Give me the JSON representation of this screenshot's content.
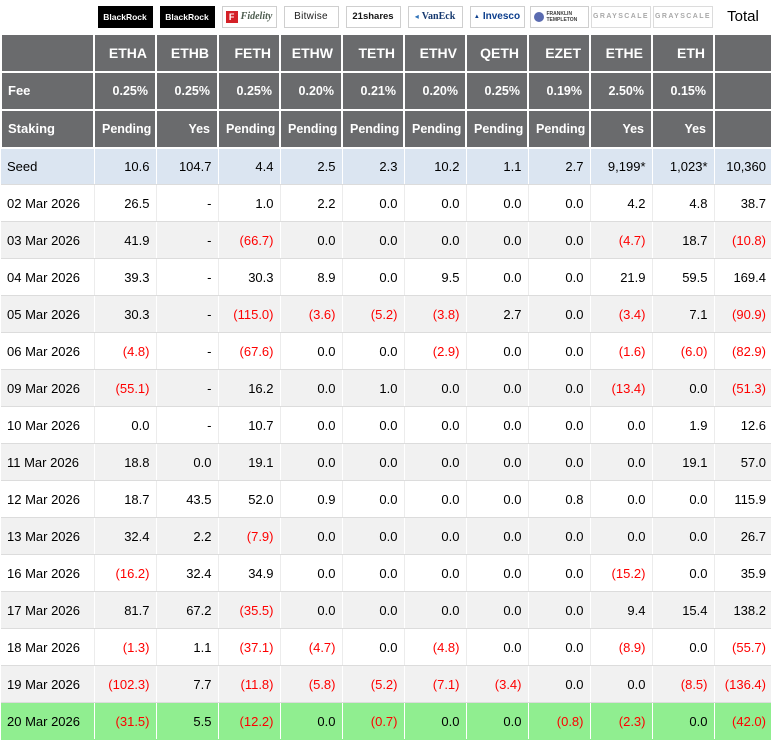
{
  "chart_data": {
    "type": "table",
    "header": {
      "total_label": "Total",
      "fee_label": "Fee",
      "staking_label": "Staking",
      "providers": [
        {
          "name": "BlackRock",
          "style": "blackrock"
        },
        {
          "name": "BlackRock",
          "style": "blackrock"
        },
        {
          "name": "Fidelity",
          "style": "fidelity",
          "mark": "F"
        },
        {
          "name": "Bitwise",
          "style": "bitwise"
        },
        {
          "name": "21shares",
          "style": "shares21"
        },
        {
          "name": "VanEck",
          "style": "vaneck"
        },
        {
          "name": "Invesco",
          "style": "invesco"
        },
        {
          "name": "FRANKLIN TEMPLETON",
          "style": "franklin"
        },
        {
          "name": "GRAYSCALE",
          "style": "grayscale"
        },
        {
          "name": "GRAYSCALE",
          "style": "grayscale"
        }
      ],
      "tickers": [
        "ETHA",
        "ETHB",
        "FETH",
        "ETHW",
        "TETH",
        "ETHV",
        "QETH",
        "EZET",
        "ETHE",
        "ETH"
      ],
      "fees": [
        "0.25%",
        "0.25%",
        "0.25%",
        "0.20%",
        "0.21%",
        "0.20%",
        "0.25%",
        "0.19%",
        "2.50%",
        "0.15%"
      ],
      "staking": [
        "Pending",
        "Yes",
        "Pending",
        "Pending",
        "Pending",
        "Pending",
        "Pending",
        "Pending",
        "Yes",
        "Yes"
      ]
    },
    "rows": [
      {
        "label": "Seed",
        "style": "seed",
        "values": [
          "10.6",
          "104.7",
          "4.4",
          "2.5",
          "2.3",
          "10.2",
          "1.1",
          "2.7",
          "9,199*",
          "1,023*",
          "10,360"
        ]
      },
      {
        "label": "02 Mar 2026",
        "values": [
          "26.5",
          "-",
          "1.0",
          "2.2",
          "0.0",
          "0.0",
          "0.0",
          "0.0",
          "4.2",
          "4.8",
          "38.7"
        ]
      },
      {
        "label": "03 Mar 2026",
        "values": [
          "41.9",
          "-",
          "(66.7)",
          "0.0",
          "0.0",
          "0.0",
          "0.0",
          "0.0",
          "(4.7)",
          "18.7",
          "(10.8)"
        ]
      },
      {
        "label": "04 Mar 2026",
        "values": [
          "39.3",
          "-",
          "30.3",
          "8.9",
          "0.0",
          "9.5",
          "0.0",
          "0.0",
          "21.9",
          "59.5",
          "169.4"
        ]
      },
      {
        "label": "05 Mar 2026",
        "values": [
          "30.3",
          "-",
          "(115.0)",
          "(3.6)",
          "(5.2)",
          "(3.8)",
          "2.7",
          "0.0",
          "(3.4)",
          "7.1",
          "(90.9)"
        ]
      },
      {
        "label": "06 Mar 2026",
        "values": [
          "(4.8)",
          "-",
          "(67.6)",
          "0.0",
          "0.0",
          "(2.9)",
          "0.0",
          "0.0",
          "(1.6)",
          "(6.0)",
          "(82.9)"
        ]
      },
      {
        "label": "09 Mar 2026",
        "values": [
          "(55.1)",
          "-",
          "16.2",
          "0.0",
          "1.0",
          "0.0",
          "0.0",
          "0.0",
          "(13.4)",
          "0.0",
          "(51.3)"
        ]
      },
      {
        "label": "10 Mar 2026",
        "values": [
          "0.0",
          "-",
          "10.7",
          "0.0",
          "0.0",
          "0.0",
          "0.0",
          "0.0",
          "0.0",
          "1.9",
          "12.6"
        ]
      },
      {
        "label": "11 Mar 2026",
        "values": [
          "18.8",
          "0.0",
          "19.1",
          "0.0",
          "0.0",
          "0.0",
          "0.0",
          "0.0",
          "0.0",
          "19.1",
          "57.0"
        ]
      },
      {
        "label": "12 Mar 2026",
        "values": [
          "18.7",
          "43.5",
          "52.0",
          "0.9",
          "0.0",
          "0.0",
          "0.0",
          "0.8",
          "0.0",
          "0.0",
          "115.9"
        ]
      },
      {
        "label": "13 Mar 2026",
        "values": [
          "32.4",
          "2.2",
          "(7.9)",
          "0.0",
          "0.0",
          "0.0",
          "0.0",
          "0.0",
          "0.0",
          "0.0",
          "26.7"
        ]
      },
      {
        "label": "16 Mar 2026",
        "values": [
          "(16.2)",
          "32.4",
          "34.9",
          "0.0",
          "0.0",
          "0.0",
          "0.0",
          "0.0",
          "(15.2)",
          "0.0",
          "35.9"
        ]
      },
      {
        "label": "17 Mar 2026",
        "values": [
          "81.7",
          "67.2",
          "(35.5)",
          "0.0",
          "0.0",
          "0.0",
          "0.0",
          "0.0",
          "9.4",
          "15.4",
          "138.2"
        ]
      },
      {
        "label": "18 Mar 2026",
        "values": [
          "(1.3)",
          "1.1",
          "(37.1)",
          "(4.7)",
          "0.0",
          "(4.8)",
          "0.0",
          "0.0",
          "(8.9)",
          "0.0",
          "(55.7)"
        ]
      },
      {
        "label": "19 Mar 2026",
        "values": [
          "(102.3)",
          "7.7",
          "(11.8)",
          "(5.8)",
          "(5.2)",
          "(7.1)",
          "(3.4)",
          "0.0",
          "0.0",
          "(8.5)",
          "(136.4)"
        ]
      },
      {
        "label": "20 Mar 2026",
        "style": "highlight",
        "values": [
          "(31.5)",
          "5.5",
          "(12.2)",
          "0.0",
          "(0.7)",
          "0.0",
          "0.0",
          "(0.8)",
          "(2.3)",
          "0.0",
          "(42.0)"
        ]
      }
    ]
  },
  "colors": {
    "header_bg": "#6a6b6d",
    "seed_row_bg": "#dbe5f1",
    "stripe_row_bg": "#f1f1f1",
    "highlight_row_bg": "#90ee90",
    "negative_text": "#fe0000"
  }
}
